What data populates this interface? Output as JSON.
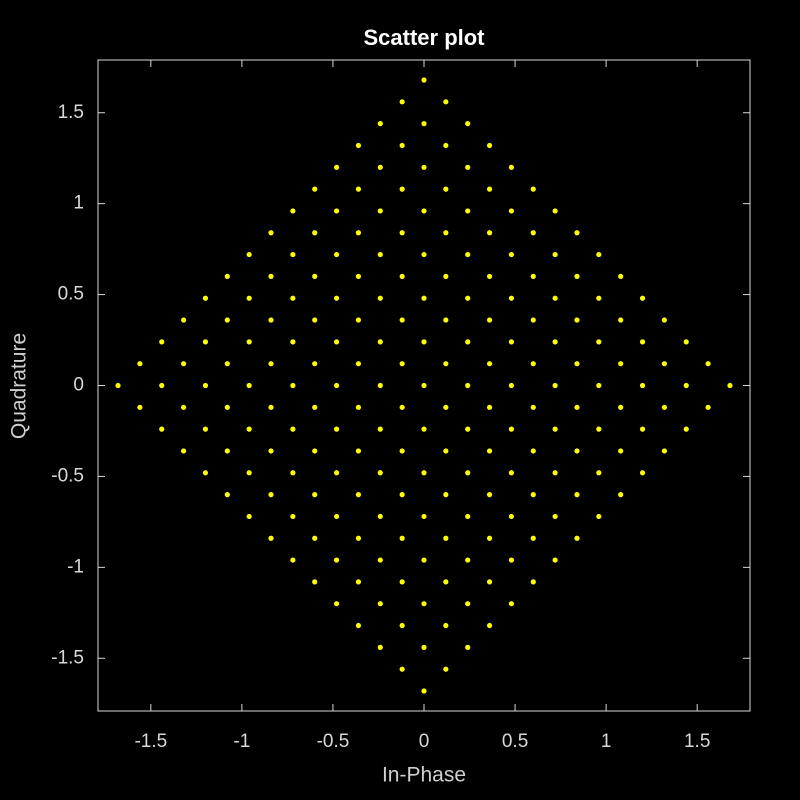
{
  "chart_data": {
    "type": "scatter",
    "title": "Scatter plot",
    "x_label": "In-Phase",
    "y_label": "Quadrature",
    "color": "#ffff00",
    "xlim": [
      -1.79,
      1.79
    ],
    "ylim": [
      -1.79,
      1.79
    ],
    "xticks": [
      -1.5,
      -1,
      -0.5,
      0,
      0.5,
      1,
      1.5
    ],
    "yticks": [
      -1.5,
      -1,
      -0.5,
      0,
      0.5,
      1,
      1.5
    ],
    "x": [
      0,
      -0.12,
      0.12,
      -0.24,
      0,
      0.24,
      -0.36,
      -0.12,
      0.12,
      0.36,
      -0.48,
      -0.24,
      0,
      0.24,
      0.48,
      -0.6,
      -0.36,
      -0.12,
      0.12,
      0.36,
      0.6,
      -0.72,
      -0.48,
      -0.24,
      0,
      0.24,
      0.48,
      0.72,
      -0.84,
      -0.6,
      -0.36,
      -0.12,
      0.12,
      0.36,
      0.6,
      0.84,
      -0.96,
      -0.72,
      -0.48,
      -0.24,
      0,
      0.24,
      0.48,
      0.72,
      0.96,
      -1.08,
      -0.84,
      -0.6,
      -0.36,
      -0.12,
      0.12,
      0.36,
      0.6,
      0.84,
      1.08,
      -1.2,
      -0.96,
      -0.72,
      -0.48,
      -0.24,
      0,
      0.24,
      0.48,
      0.72,
      0.96,
      1.2,
      -1.32,
      -1.08,
      -0.84,
      -0.6,
      -0.36,
      -0.12,
      0.12,
      0.36,
      0.6,
      0.84,
      1.08,
      1.32,
      -1.44,
      -1.2,
      -0.96,
      -0.72,
      -0.48,
      -0.24,
      0,
      0.24,
      0.48,
      0.72,
      0.96,
      1.2,
      1.44,
      -1.56,
      -1.32,
      -1.08,
      -0.84,
      -0.6,
      -0.36,
      -0.12,
      0.12,
      0.36,
      0.6,
      0.84,
      1.08,
      1.32,
      1.56,
      -1.68,
      -1.44,
      -1.2,
      -0.96,
      -0.72,
      -0.48,
      -0.24,
      0,
      0.24,
      0.48,
      0.72,
      0.96,
      1.2,
      1.44,
      1.68,
      -1.56,
      -1.32,
      -1.08,
      -0.84,
      -0.6,
      -0.36,
      -0.12,
      0.12,
      0.36,
      0.6,
      0.84,
      1.08,
      1.32,
      1.56,
      -1.44,
      -1.2,
      -0.96,
      -0.72,
      -0.48,
      -0.24,
      0,
      0.24,
      0.48,
      0.72,
      0.96,
      1.2,
      1.44,
      -1.32,
      -1.08,
      -0.84,
      -0.6,
      -0.36,
      -0.12,
      0.12,
      0.36,
      0.6,
      0.84,
      1.08,
      1.32,
      -1.2,
      -0.96,
      -0.72,
      -0.48,
      -0.24,
      0,
      0.24,
      0.48,
      0.72,
      0.96,
      1.2,
      -1.08,
      -0.84,
      -0.6,
      -0.36,
      -0.12,
      0.12,
      0.36,
      0.6,
      0.84,
      1.08,
      -0.96,
      -0.72,
      -0.48,
      -0.24,
      0,
      0.24,
      0.48,
      0.72,
      0.96,
      -0.84,
      -0.6,
      -0.36,
      -0.12,
      0.12,
      0.36,
      0.6,
      0.84,
      -0.72,
      -0.48,
      -0.24,
      0,
      0.24,
      0.48,
      0.72,
      -0.6,
      -0.36,
      -0.12,
      0.12,
      0.36,
      0.6,
      -0.48,
      -0.24,
      0,
      0.24,
      0.48,
      -0.36,
      -0.12,
      0.12,
      0.36,
      -0.24,
      0,
      0.24,
      -0.12,
      0.12,
      0
    ],
    "values": [
      1.68,
      1.56,
      1.56,
      1.44,
      1.44,
      1.44,
      1.32,
      1.32,
      1.32,
      1.32,
      1.2,
      1.2,
      1.2,
      1.2,
      1.2,
      1.08,
      1.08,
      1.08,
      1.08,
      1.08,
      1.08,
      0.96,
      0.96,
      0.96,
      0.96,
      0.96,
      0.96,
      0.96,
      0.84,
      0.84,
      0.84,
      0.84,
      0.84,
      0.84,
      0.84,
      0.84,
      0.72,
      0.72,
      0.72,
      0.72,
      0.72,
      0.72,
      0.72,
      0.72,
      0.72,
      0.6,
      0.6,
      0.6,
      0.6,
      0.6,
      0.6,
      0.6,
      0.6,
      0.6,
      0.6,
      0.48,
      0.48,
      0.48,
      0.48,
      0.48,
      0.48,
      0.48,
      0.48,
      0.48,
      0.48,
      0.48,
      0.36,
      0.36,
      0.36,
      0.36,
      0.36,
      0.36,
      0.36,
      0.36,
      0.36,
      0.36,
      0.36,
      0.36,
      0.24,
      0.24,
      0.24,
      0.24,
      0.24,
      0.24,
      0.24,
      0.24,
      0.24,
      0.24,
      0.24,
      0.24,
      0.24,
      0.12,
      0.12,
      0.12,
      0.12,
      0.12,
      0.12,
      0.12,
      0.12,
      0.12,
      0.12,
      0.12,
      0.12,
      0.12,
      0.12,
      0,
      0,
      0,
      0,
      0,
      0,
      0,
      0,
      0,
      0,
      0,
      0,
      0,
      0,
      0,
      -0.12,
      -0.12,
      -0.12,
      -0.12,
      -0.12,
      -0.12,
      -0.12,
      -0.12,
      -0.12,
      -0.12,
      -0.12,
      -0.12,
      -0.12,
      -0.12,
      -0.24,
      -0.24,
      -0.24,
      -0.24,
      -0.24,
      -0.24,
      -0.24,
      -0.24,
      -0.24,
      -0.24,
      -0.24,
      -0.24,
      -0.24,
      -0.36,
      -0.36,
      -0.36,
      -0.36,
      -0.36,
      -0.36,
      -0.36,
      -0.36,
      -0.36,
      -0.36,
      -0.36,
      -0.36,
      -0.48,
      -0.48,
      -0.48,
      -0.48,
      -0.48,
      -0.48,
      -0.48,
      -0.48,
      -0.48,
      -0.48,
      -0.48,
      -0.6,
      -0.6,
      -0.6,
      -0.6,
      -0.6,
      -0.6,
      -0.6,
      -0.6,
      -0.6,
      -0.6,
      -0.72,
      -0.72,
      -0.72,
      -0.72,
      -0.72,
      -0.72,
      -0.72,
      -0.72,
      -0.72,
      -0.84,
      -0.84,
      -0.84,
      -0.84,
      -0.84,
      -0.84,
      -0.84,
      -0.84,
      -0.96,
      -0.96,
      -0.96,
      -0.96,
      -0.96,
      -0.96,
      -0.96,
      -1.08,
      -1.08,
      -1.08,
      -1.08,
      -1.08,
      -1.08,
      -1.2,
      -1.2,
      -1.2,
      -1.2,
      -1.2,
      -1.32,
      -1.32,
      -1.32,
      -1.32,
      -1.44,
      -1.44,
      -1.44,
      -1.56,
      -1.56,
      -1.68
    ]
  }
}
